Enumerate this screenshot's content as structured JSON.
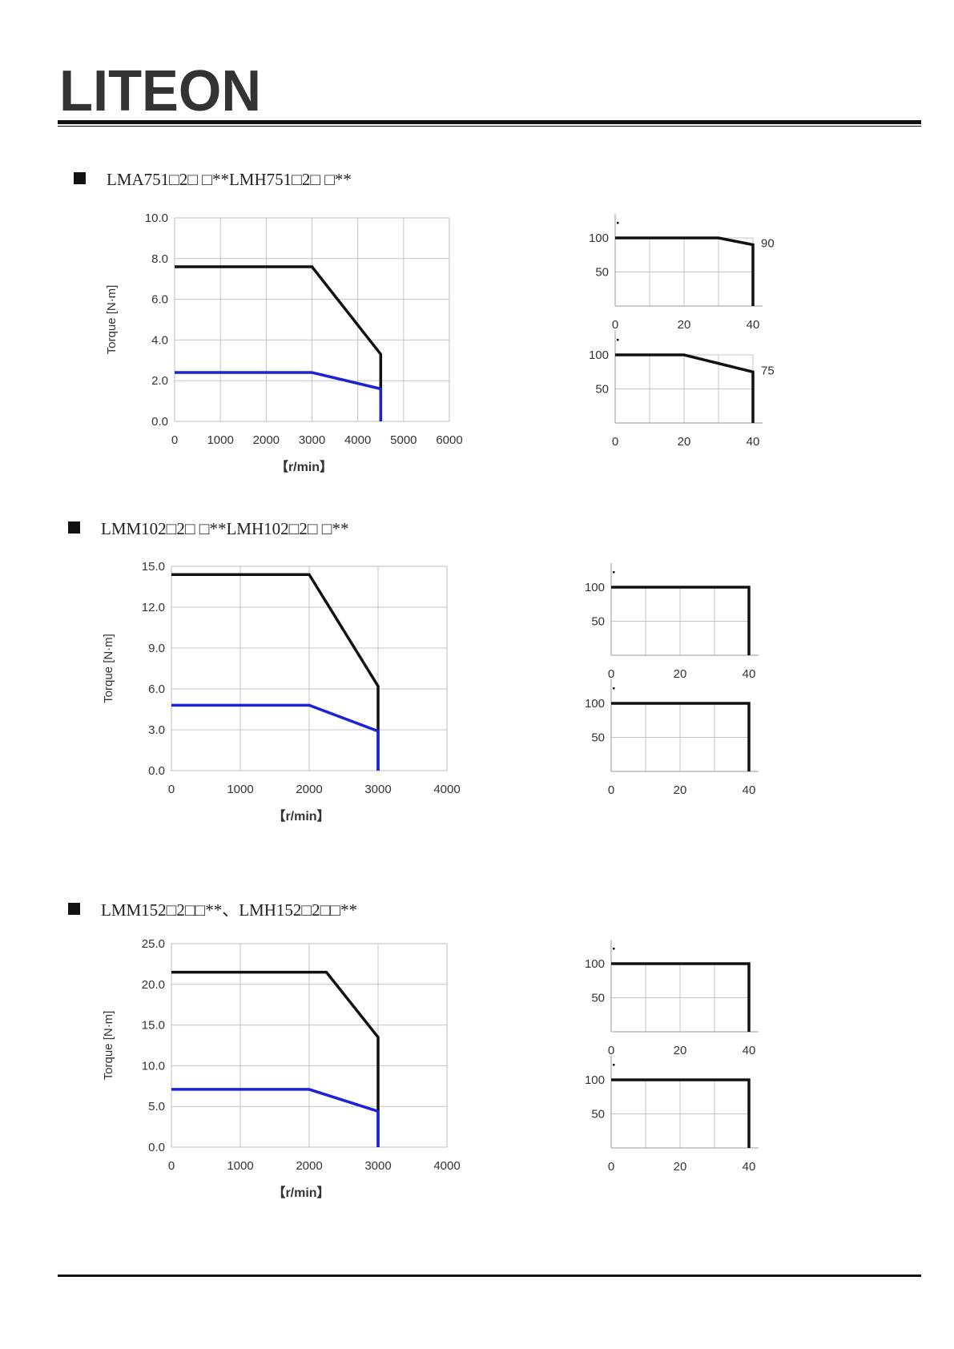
{
  "brand": {
    "logo_text": "LITEON",
    "color": "#1a5aa8"
  },
  "colors": {
    "rated": "#1d22d6",
    "peak": "#111111",
    "grid": "#c4c4c4",
    "frame": "#bdbdbd"
  },
  "sections": [
    {
      "title": "LMA751□2□ □**LMH751□2□ □**"
    },
    {
      "title": "LMM102□2□ □**LMH102□2□ □**"
    },
    {
      "title": "LMM152□2□□**、LMH152□2□□**"
    }
  ],
  "chart_data": [
    {
      "type": "line",
      "ylabel": "Torque [N·m]",
      "xlabel": "【r/min】",
      "xlim": [
        0,
        6000
      ],
      "ylim": [
        0,
        10
      ],
      "xticks": [
        0,
        1000,
        2000,
        3000,
        4000,
        5000,
        6000
      ],
      "xtick_labels": [
        "0",
        "1000",
        "2000",
        "3000",
        "4000",
        "5000",
        "6000"
      ],
      "yticks": [
        0,
        2,
        4,
        6,
        8,
        10
      ],
      "ytick_labels": [
        "0.0",
        "2.0",
        "4.0",
        "6.0",
        "8.0",
        "10.0"
      ],
      "grid": true,
      "series": [
        {
          "style": "peak",
          "points": [
            [
              0,
              7.6
            ],
            [
              3000,
              7.6
            ],
            [
              4500,
              3.3
            ],
            [
              4500,
              0
            ]
          ]
        },
        {
          "style": "rated",
          "points": [
            [
              0,
              2.4
            ],
            [
              3000,
              2.4
            ],
            [
              4500,
              1.6
            ],
            [
              4500,
              0
            ]
          ]
        }
      ]
    },
    {
      "type": "line",
      "ylabel": "Torque [N·m]",
      "xlabel": "【r/min】",
      "xlim": [
        0,
        4000
      ],
      "ylim": [
        0,
        15
      ],
      "xticks": [
        0,
        1000,
        2000,
        3000,
        4000
      ],
      "xtick_labels": [
        "0",
        "1000",
        "2000",
        "3000",
        "4000"
      ],
      "yticks": [
        0,
        3,
        6,
        9,
        12,
        15
      ],
      "ytick_labels": [
        "0.0",
        "3.0",
        "6.0",
        "9.0",
        "12.0",
        "15.0"
      ],
      "grid": true,
      "series": [
        {
          "style": "peak",
          "points": [
            [
              0,
              14.4
            ],
            [
              2000,
              14.4
            ],
            [
              3000,
              6.2
            ],
            [
              3000,
              0
            ]
          ]
        },
        {
          "style": "rated",
          "points": [
            [
              0,
              4.8
            ],
            [
              2000,
              4.8
            ],
            [
              3000,
              2.9
            ],
            [
              3000,
              0
            ]
          ]
        }
      ]
    },
    {
      "type": "line",
      "ylabel": "Torque [N·m]",
      "xlabel": "【r/min】",
      "xlim": [
        0,
        4000
      ],
      "ylim": [
        0,
        25
      ],
      "xticks": [
        0,
        1000,
        2000,
        3000,
        4000
      ],
      "xtick_labels": [
        "0",
        "1000",
        "2000",
        "3000",
        "4000"
      ],
      "yticks": [
        0,
        5,
        10,
        15,
        20,
        25
      ],
      "ytick_labels": [
        "0.0",
        "5.0",
        "10.0",
        "15.0",
        "20.0",
        "25.0"
      ],
      "grid": true,
      "series": [
        {
          "style": "peak",
          "points": [
            [
              0,
              21.5
            ],
            [
              2250,
              21.5
            ],
            [
              3000,
              13.5
            ],
            [
              3000,
              0
            ]
          ]
        },
        {
          "style": "rated",
          "points": [
            [
              0,
              7.1
            ],
            [
              2000,
              7.1
            ],
            [
              3000,
              4.4
            ],
            [
              3000,
              0
            ]
          ]
        }
      ]
    },
    {
      "type": "line",
      "xlim": [
        0,
        40
      ],
      "ylim": [
        0,
        100
      ],
      "xticks": [
        0,
        20,
        40
      ],
      "xtick_labels": [
        "0",
        "20",
        "40"
      ],
      "yticks": [
        50,
        100
      ],
      "ytick_labels": [
        "50",
        "100"
      ],
      "grid": true,
      "end_label": "90",
      "series": [
        {
          "style": "peak",
          "points": [
            [
              0,
              100
            ],
            [
              30,
              100
            ],
            [
              40,
              90
            ],
            [
              40,
              0
            ]
          ]
        }
      ]
    },
    {
      "type": "line",
      "xlim": [
        0,
        40
      ],
      "ylim": [
        0,
        100
      ],
      "xticks": [
        0,
        20,
        40
      ],
      "xtick_labels": [
        "0",
        "20",
        "40"
      ],
      "yticks": [
        50,
        100
      ],
      "ytick_labels": [
        "50",
        "100"
      ],
      "grid": true,
      "end_label": "75",
      "series": [
        {
          "style": "peak",
          "points": [
            [
              0,
              100
            ],
            [
              20,
              100
            ],
            [
              40,
              75
            ],
            [
              40,
              0
            ]
          ]
        }
      ]
    },
    {
      "type": "line",
      "xlim": [
        0,
        40
      ],
      "ylim": [
        0,
        100
      ],
      "xticks": [
        0,
        20,
        40
      ],
      "xtick_labels": [
        "0",
        "20",
        "40"
      ],
      "yticks": [
        50,
        100
      ],
      "ytick_labels": [
        "50",
        "100"
      ],
      "grid": true,
      "series": [
        {
          "style": "peak",
          "points": [
            [
              0,
              100
            ],
            [
              40,
              100
            ],
            [
              40,
              0
            ]
          ]
        }
      ]
    },
    {
      "type": "line",
      "xlim": [
        0,
        40
      ],
      "ylim": [
        0,
        100
      ],
      "xticks": [
        0,
        20,
        40
      ],
      "xtick_labels": [
        "0",
        "20",
        "40"
      ],
      "yticks": [
        50,
        100
      ],
      "ytick_labels": [
        "50",
        "100"
      ],
      "grid": true,
      "series": [
        {
          "style": "peak",
          "points": [
            [
              0,
              100
            ],
            [
              40,
              100
            ],
            [
              40,
              0
            ]
          ]
        }
      ]
    },
    {
      "type": "line",
      "xlim": [
        0,
        40
      ],
      "ylim": [
        0,
        100
      ],
      "xticks": [
        0,
        20,
        40
      ],
      "xtick_labels": [
        "0",
        "20",
        "40"
      ],
      "yticks": [
        50,
        100
      ],
      "ytick_labels": [
        "50",
        "100"
      ],
      "grid": true,
      "series": [
        {
          "style": "peak",
          "points": [
            [
              0,
              100
            ],
            [
              40,
              100
            ],
            [
              40,
              0
            ]
          ]
        }
      ]
    },
    {
      "type": "line",
      "xlim": [
        0,
        40
      ],
      "ylim": [
        0,
        100
      ],
      "xticks": [
        0,
        20,
        40
      ],
      "xtick_labels": [
        "0",
        "20",
        "40"
      ],
      "yticks": [
        50,
        100
      ],
      "ytick_labels": [
        "50",
        "100"
      ],
      "grid": true,
      "series": [
        {
          "style": "peak",
          "points": [
            [
              0,
              100
            ],
            [
              40,
              100
            ],
            [
              40,
              0
            ]
          ]
        }
      ]
    }
  ]
}
